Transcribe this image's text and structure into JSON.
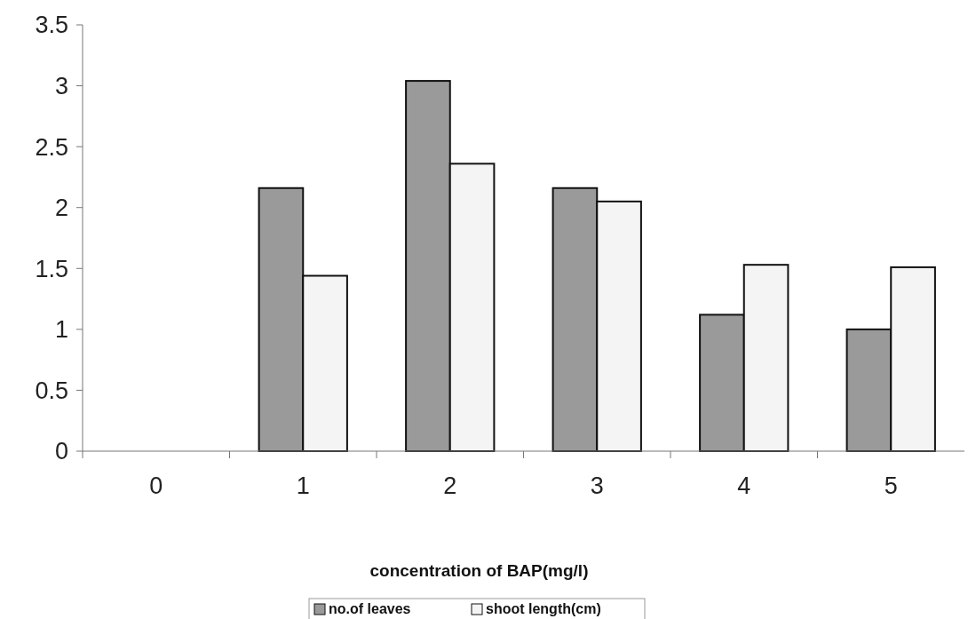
{
  "chart_data": {
    "type": "bar",
    "xlabel": "concentration of BAP(mg/l)",
    "categories": [
      "0",
      "1",
      "2",
      "3",
      "4",
      "5"
    ],
    "series": [
      {
        "name": "no.of leaves",
        "color": "#9a9a9a",
        "values": [
          0,
          2.16,
          3.04,
          2.16,
          1.12,
          1.0
        ]
      },
      {
        "name": "shoot length(cm)",
        "color": "#f4f4f4",
        "values": [
          0,
          1.44,
          2.36,
          2.05,
          1.53,
          1.51
        ]
      }
    ],
    "ylim": [
      0,
      3.5
    ],
    "yticks": [
      0,
      0.5,
      1,
      1.5,
      2,
      2.5,
      3,
      3.5
    ],
    "grid": false,
    "legend": "bottom"
  }
}
